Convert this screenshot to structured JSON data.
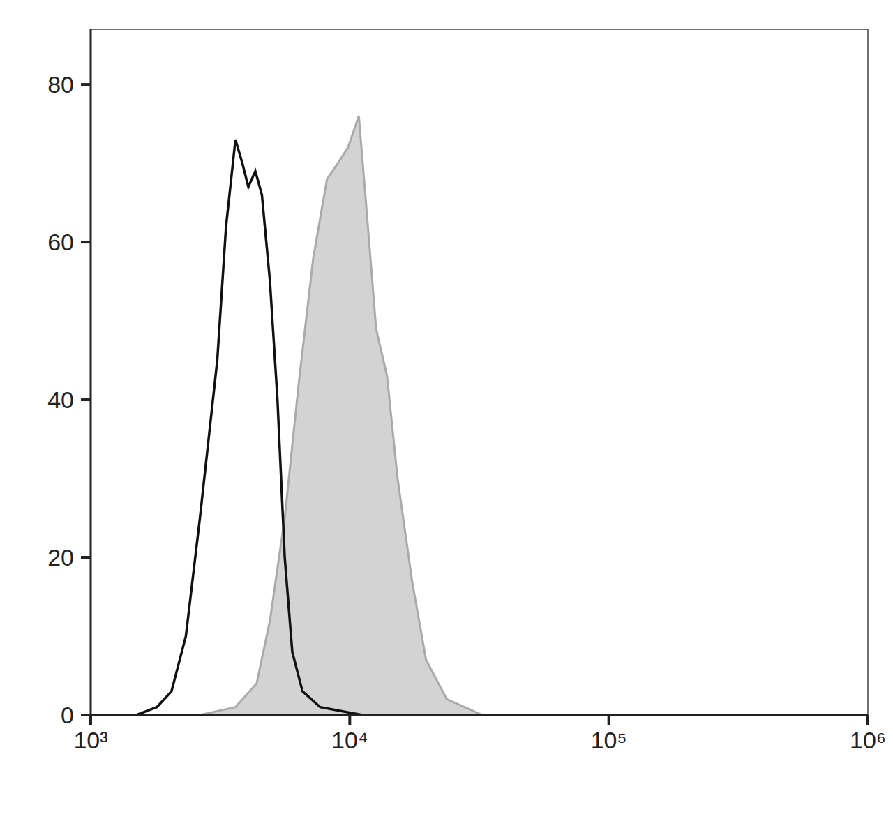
{
  "chart_data": {
    "type": "histogram",
    "log": "x",
    "grid": false,
    "xlim": [
      1000,
      1000000
    ],
    "xticks": [
      {
        "value": 1000,
        "label": "10³"
      },
      {
        "value": 10000,
        "label": "10⁴"
      },
      {
        "value": 100000,
        "label": "10⁵"
      },
      {
        "value": 1000000,
        "label": "10⁶"
      }
    ],
    "ylim": [
      0,
      87
    ],
    "yticks": [
      0,
      20,
      40,
      60,
      80
    ],
    "series": [
      {
        "type": "area",
        "color": "#aaaaaa",
        "x": [
          1000,
          2640,
          3620,
          4370,
          4920,
          5610,
          6350,
          7230,
          8170,
          8990,
          9840,
          10840,
          11550,
          12640,
          13930,
          15300,
          17400,
          19700,
          23700,
          32500,
          1000000
        ],
        "values": [
          0,
          0,
          1,
          4,
          12,
          25,
          42,
          58,
          68,
          70,
          72,
          76,
          65,
          49,
          43,
          30,
          17,
          7,
          2,
          0,
          0
        ]
      },
      {
        "type": "line",
        "color": "#111111",
        "x": [
          1000,
          1500,
          1800,
          2050,
          2330,
          2640,
          3080,
          3330,
          3620,
          3850,
          4060,
          4320,
          4580,
          4920,
          5260,
          5610,
          6000,
          6570,
          7690,
          11200,
          1000000
        ],
        "values": [
          0,
          0,
          1,
          3,
          10,
          25,
          45,
          62,
          73,
          70,
          67,
          69,
          66,
          55,
          40,
          20,
          8,
          3,
          1,
          0,
          0
        ]
      }
    ]
  }
}
